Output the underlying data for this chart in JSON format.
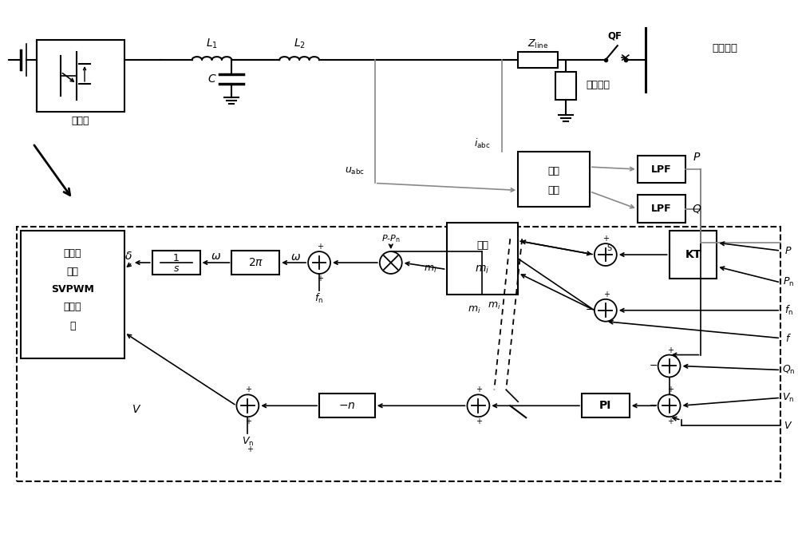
{
  "fig_width": 10.0,
  "fig_height": 6.69,
  "dpi": 100,
  "xlim": [
    0,
    100
  ],
  "ylim": [
    0,
    66.9
  ],
  "bg": "#ffffff"
}
